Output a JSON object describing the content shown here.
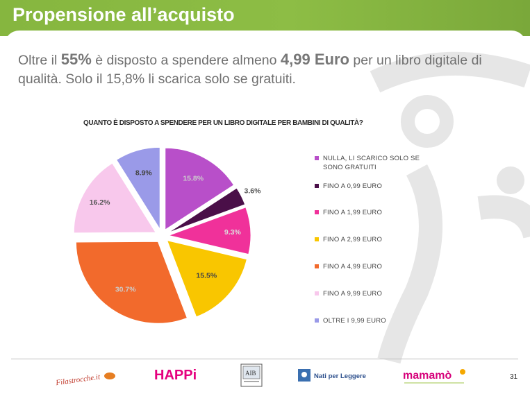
{
  "slide": {
    "title": "Propensione all’acquisto",
    "headline": {
      "part1": "Oltre il ",
      "hl1": "55%",
      "part2": " è disposto a spendere almeno ",
      "hl2": "4,99 Euro",
      "part3": " per un libro digitale  di qualità. Solo il 15,8% li scarica solo se gratuiti."
    },
    "page_number": "31"
  },
  "logos": {
    "filastrocche": "Filastrocche.it",
    "happi": "HAPPi",
    "aib": "AIB",
    "nati": "Nati per Leggere",
    "mamamo": "mamamò"
  },
  "chart_data": {
    "type": "pie",
    "title": "QUANTO È DISPOSTO A SPENDERE PER UN LIBRO DIGITALE PER BAMBINI DI QUALITÀ?",
    "legend_position": "right",
    "slices": [
      {
        "label": "NULLA, LI SCARICO SOLO SE SONO GRATUITI",
        "value": 15.8,
        "value_label": "15.8%",
        "color": "#b84fc9"
      },
      {
        "label": "FINO A 0,99 EURO",
        "value": 3.6,
        "value_label": "3.6%",
        "color": "#4a0f48"
      },
      {
        "label": "FINO A 1,99 EURO",
        "value": 9.3,
        "value_label": "9.3%",
        "color": "#f0319a"
      },
      {
        "label": "FINO A 2,99 EURO",
        "value": 15.5,
        "value_label": "15.5%",
        "color": "#f9c600"
      },
      {
        "label": "FINO A 4,99 EURO",
        "value": 30.7,
        "value_label": "30.7%",
        "color": "#f26a2c"
      },
      {
        "label": "FINO A 9,99 EURO",
        "value": 16.2,
        "value_label": "16.2%",
        "color": "#f8c8ec"
      },
      {
        "label": "OLTRE I 9,99 EURO",
        "value": 8.9,
        "value_label": "8.9%",
        "color": "#9a9ae8"
      }
    ]
  }
}
